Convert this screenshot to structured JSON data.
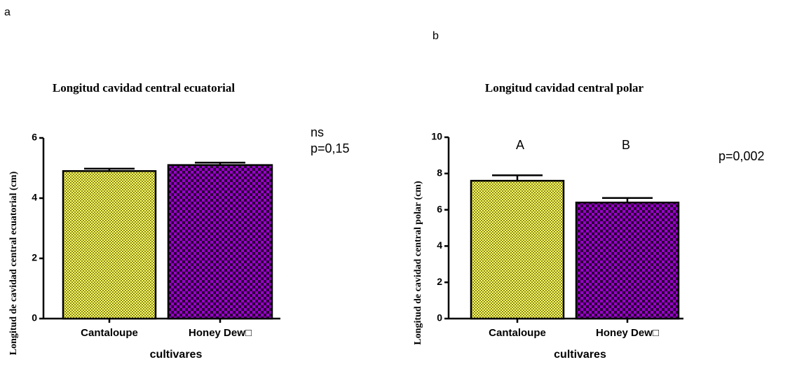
{
  "chart_data": [
    {
      "type": "bar",
      "panel": "a",
      "title": "Longitud cavidad central ecuatorial",
      "y_label": "Longitud de cavidad central ecuatorial (cm)",
      "x_label": "cultivares",
      "categories": [
        "Cantaloupe",
        "Honey Dew□"
      ],
      "values": [
        4.9,
        5.1
      ],
      "errors": [
        0.08,
        0.08
      ],
      "colors": [
        "#ffff66",
        "#9900cc"
      ],
      "ylim": [
        0,
        6
      ],
      "yticks": [
        0,
        2,
        4,
        6
      ],
      "annotations": [
        "ns",
        "p=0,15"
      ]
    },
    {
      "type": "bar",
      "panel": "b",
      "title": "Longitud cavidad central polar",
      "y_label": "Longitud de cavidad central polar (cm)",
      "x_label": "cultivares",
      "categories": [
        "Cantaloupe",
        "Honey Dew□"
      ],
      "values": [
        7.6,
        6.4
      ],
      "errors": [
        0.3,
        0.25
      ],
      "colors": [
        "#ffff66",
        "#9900cc"
      ],
      "ylim": [
        0,
        10
      ],
      "yticks": [
        0,
        2,
        4,
        6,
        8,
        10
      ],
      "annotations": [
        "A",
        "B",
        "p=0,002"
      ]
    }
  ]
}
